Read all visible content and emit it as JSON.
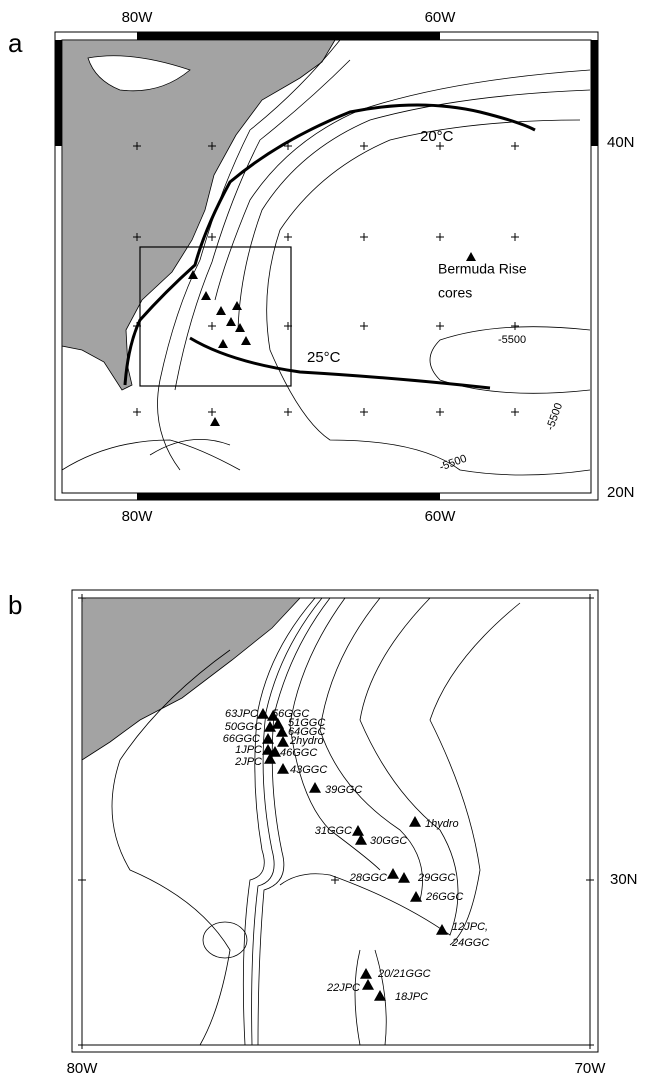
{
  "panel_a": {
    "letter": "a",
    "top_lon_labels": [
      "80W",
      "60W"
    ],
    "bottom_lon_labels": [
      "80W",
      "60W"
    ],
    "lat_labels": [
      "40N",
      "20N"
    ],
    "isotherms": [
      "20°C",
      "25°C"
    ],
    "site_label": [
      "Bermuda Rise",
      "cores"
    ],
    "depth_labels": [
      "-5500",
      "-5500",
      "-5500"
    ]
  },
  "panel_b": {
    "letter": "b",
    "lon_labels": [
      "80W",
      "70W"
    ],
    "lat_label": "30N",
    "stations": [
      "63JPC",
      "56GGC",
      "50GGC",
      "51GGC",
      "64GGC",
      "66GGC",
      "2hydro",
      "1JPC",
      "46GGC",
      "2JPC",
      "43GGC",
      "39GGC",
      "1hydro",
      "31GGC",
      "30GGC",
      "28GGC",
      "29GGC",
      "26GGC",
      "12JPC,",
      "24GGC",
      "20/21GGC",
      "22JPC",
      "18JPC"
    ]
  }
}
